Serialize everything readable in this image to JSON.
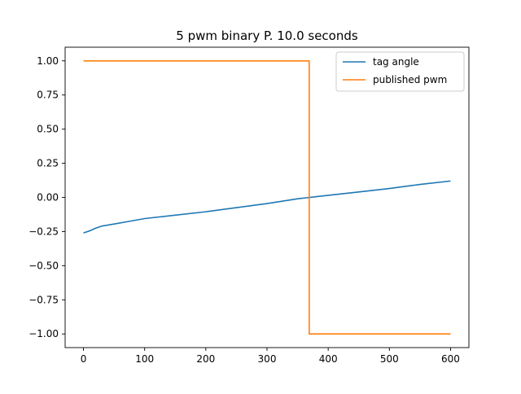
{
  "chart_data": {
    "type": "line",
    "title": "5 pwm binary P. 10.0 seconds",
    "xlabel": "",
    "ylabel": "",
    "xlim": [
      -30,
      630
    ],
    "ylim": [
      -1.1,
      1.1
    ],
    "xticks": [
      0,
      100,
      200,
      300,
      400,
      500,
      600
    ],
    "yticks": [
      1.0,
      0.75,
      0.5,
      0.25,
      0.0,
      -0.25,
      -0.5,
      -0.75,
      -1.0
    ],
    "ytick_labels": [
      "1.00",
      "0.75",
      "0.50",
      "0.25",
      "0.00",
      "−0.25",
      "−0.50",
      "−0.75",
      "−1.00"
    ],
    "grid": false,
    "legend_position": "upper right",
    "series": [
      {
        "name": "tag angle",
        "color": "#1f77b4",
        "x": [
          0,
          10,
          20,
          30,
          50,
          75,
          100,
          150,
          200,
          250,
          300,
          350,
          370,
          400,
          450,
          500,
          550,
          600
        ],
        "y": [
          -0.26,
          -0.245,
          -0.225,
          -0.21,
          -0.195,
          -0.175,
          -0.155,
          -0.13,
          -0.105,
          -0.075,
          -0.045,
          -0.01,
          0.0,
          0.015,
          0.04,
          0.065,
          0.095,
          0.12
        ]
      },
      {
        "name": "published pwm",
        "color": "#ff7f0e",
        "x": [
          0,
          369,
          369,
          600
        ],
        "y": [
          1.0,
          1.0,
          -1.0,
          -1.0
        ]
      }
    ]
  }
}
